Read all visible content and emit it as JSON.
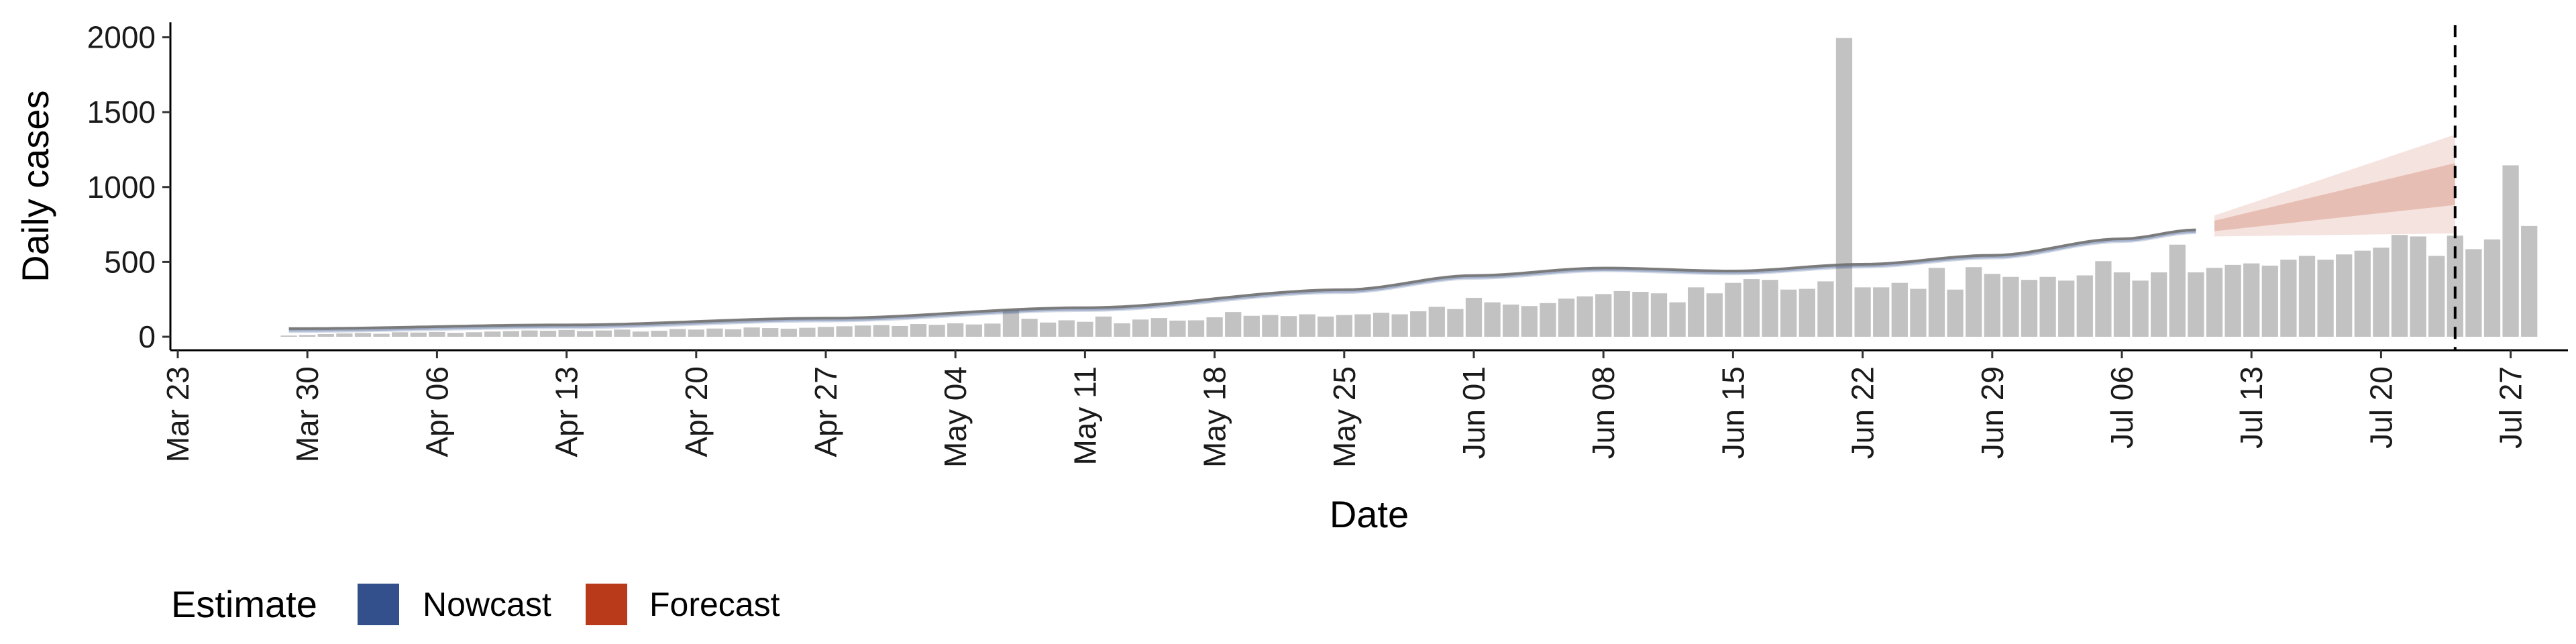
{
  "chart_data": {
    "type": "bar",
    "xlabel": "Date",
    "ylabel": "Daily cases",
    "ylim": [
      -90,
      2100
    ],
    "x_ticks": [
      "Mar 23",
      "Mar 30",
      "Apr 06",
      "Apr 13",
      "Apr 20",
      "Apr 27",
      "May 04",
      "May 11",
      "May 18",
      "May 25",
      "Jun 01",
      "Jun 08",
      "Jun 15",
      "Jun 22",
      "Jun 29",
      "Jul 06",
      "Jul 13",
      "Jul 20",
      "Jul 27"
    ],
    "y_ticks": [
      0,
      500,
      1000,
      1500,
      2000
    ],
    "x_start": "2020-03-23",
    "bars": {
      "name": "Reported cases",
      "color": "#bdbdbd",
      "start": "2020-03-29",
      "values": [
        8,
        12,
        18,
        22,
        25,
        20,
        30,
        28,
        32,
        26,
        30,
        35,
        38,
        42,
        40,
        45,
        38,
        42,
        48,
        35,
        40,
        52,
        48,
        55,
        50,
        62,
        58,
        54,
        60,
        66,
        70,
        75,
        78,
        72,
        85,
        80,
        90,
        82,
        88,
        180,
        120,
        95,
        110,
        100,
        135,
        90,
        115,
        125,
        108,
        110,
        130,
        165,
        140,
        145,
        138,
        150,
        135,
        145,
        150,
        160,
        150,
        170,
        200,
        185,
        260,
        230,
        215,
        205,
        225,
        255,
        270,
        285,
        305,
        300,
        290,
        230,
        330,
        290,
        360,
        385,
        380,
        315,
        320,
        370,
        1995,
        330,
        330,
        360,
        320,
        460,
        315,
        465,
        420,
        400,
        380,
        400,
        375,
        410,
        505,
        430,
        375,
        430,
        615,
        430,
        460,
        480,
        490,
        475,
        515,
        540,
        515,
        550,
        575,
        595,
        680,
        670,
        540,
        675,
        585,
        650,
        1145,
        740
      ]
    },
    "nowcast": {
      "name": "Nowcast",
      "color": "#34508c",
      "start": "2020-03-29",
      "end": "2020-07-10",
      "anchors": [
        [
          "2020-03-29",
          40
        ],
        [
          "2020-04-13",
          65
        ],
        [
          "2020-04-27",
          110
        ],
        [
          "2020-05-11",
          180
        ],
        [
          "2020-05-25",
          300
        ],
        [
          "2020-06-01",
          395
        ],
        [
          "2020-06-08",
          445
        ],
        [
          "2020-06-15",
          425
        ],
        [
          "2020-06-22",
          470
        ],
        [
          "2020-06-29",
          530
        ],
        [
          "2020-07-06",
          640
        ],
        [
          "2020-07-10",
          700
        ]
      ],
      "band_outer": 14,
      "band_inner": 6
    },
    "forecast": {
      "name": "Forecast",
      "color": "#b83a1b",
      "start": "2020-07-11",
      "end": "2020-07-24",
      "median": [
        [
          "2020-07-11",
          740
        ],
        [
          "2020-07-24",
          1020
        ]
      ],
      "inner_half": [
        [
          "2020-07-11",
          35
        ],
        [
          "2020-07-24",
          140
        ]
      ],
      "outer_half": [
        [
          "2020-07-11",
          70
        ],
        [
          "2020-07-24",
          330
        ]
      ]
    },
    "vline": "2020-07-24",
    "grid": false,
    "legend": {
      "title": "Estimate",
      "position": "bottom-left",
      "items": [
        {
          "label": "Nowcast",
          "color": "#34508c"
        },
        {
          "label": "Forecast",
          "color": "#b83a1b"
        }
      ]
    }
  }
}
